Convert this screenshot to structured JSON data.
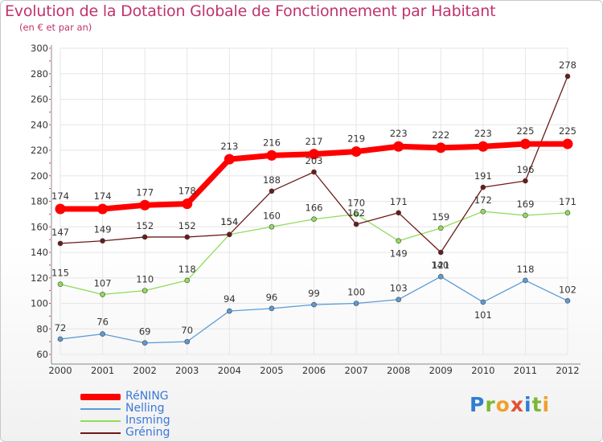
{
  "title": "Evolution de la Dotation Globale de Fonctionnement par Habitant",
  "subtitle": "(en € et par an)",
  "logo": [
    "P",
    "r",
    "o",
    "x",
    "i",
    "t",
    "i"
  ],
  "chart_data": {
    "type": "line",
    "categories": [
      "2000",
      "2001",
      "2002",
      "2003",
      "2004",
      "2005",
      "2006",
      "2007",
      "2008",
      "2009",
      "2010",
      "2011",
      "2012"
    ],
    "ylim": [
      60,
      300
    ],
    "yticks": [
      60,
      80,
      100,
      120,
      140,
      160,
      180,
      200,
      220,
      240,
      260,
      280,
      300
    ],
    "series": [
      {
        "name": "RéNING",
        "color": "#ff0000",
        "values": [
          174,
          174,
          177,
          178,
          213,
          216,
          217,
          219,
          223,
          222,
          223,
          225,
          225
        ]
      },
      {
        "name": "Nelling",
        "color": "#5b9bd5",
        "values": [
          72,
          76,
          69,
          70,
          94,
          96,
          99,
          100,
          103,
          121,
          101,
          118,
          102
        ]
      },
      {
        "name": "Insming",
        "color": "#8fdc5a",
        "values": [
          115,
          107,
          110,
          118,
          154,
          160,
          166,
          170,
          149,
          159,
          172,
          169,
          171
        ]
      },
      {
        "name": "Gréning",
        "color": "#6b1a1a",
        "values": [
          147,
          149,
          152,
          152,
          154,
          188,
          203,
          162,
          171,
          140,
          191,
          196,
          278
        ]
      }
    ]
  }
}
